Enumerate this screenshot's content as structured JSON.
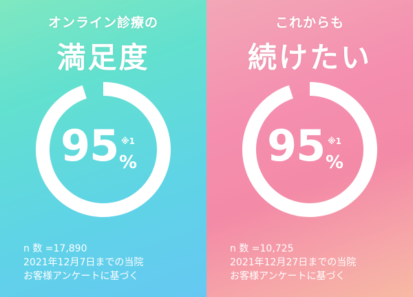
{
  "panels": [
    {
      "subtitle": "オンライン診療の",
      "title": "満足度",
      "value": "95",
      "percent_sign": "%",
      "value_fraction": 0.95,
      "note_mark": "※1",
      "footnotes": [
        "n 数 =17,890",
        "2021年12月7日までの当院",
        "お客様アンケートに基づく"
      ]
    },
    {
      "subtitle": "これからも",
      "title": "続けたい",
      "value": "95",
      "percent_sign": "%",
      "value_fraction": 0.95,
      "note_mark": "※1",
      "footnotes": [
        "n 数 =10,725",
        "2021年12月27日までの当院",
        "お客様アンケートに基づく"
      ]
    }
  ],
  "colors": {
    "text": "#ffffff",
    "ring": "#ffffff",
    "left_gradient": [
      "#7fe8c0",
      "#66c8f2"
    ],
    "right_gradient": [
      "#f2a7b6",
      "#f7b9a3"
    ]
  }
}
